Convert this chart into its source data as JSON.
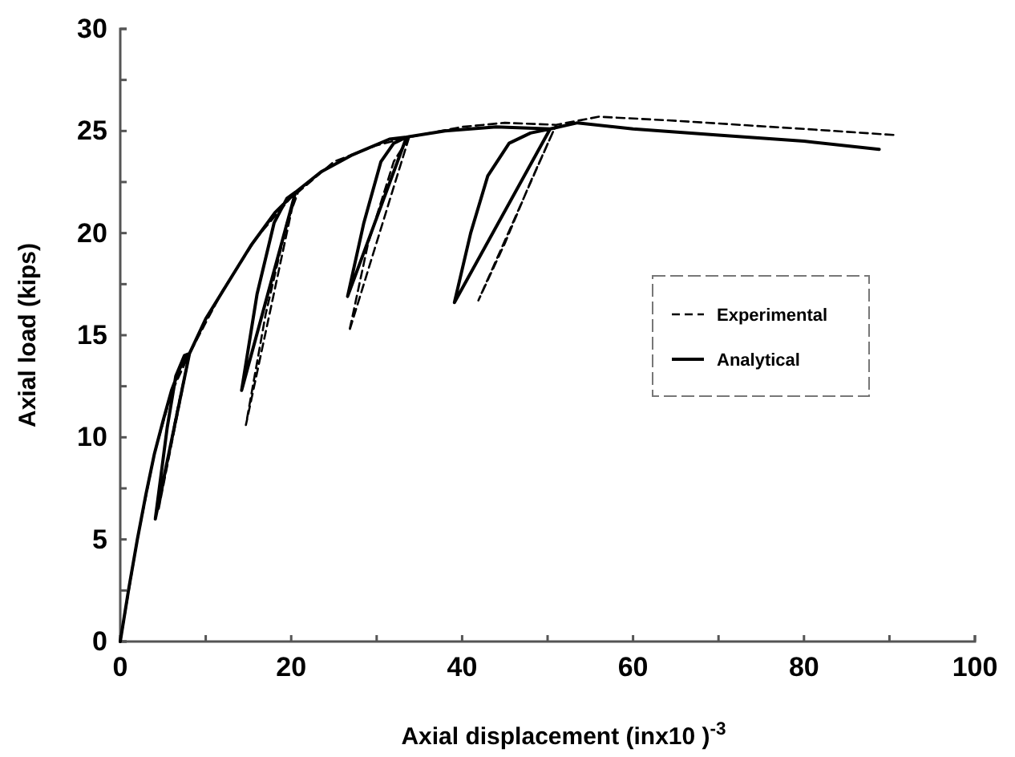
{
  "chart_data": {
    "type": "line",
    "xlabel": "Axial displacement (inx10 )$^{-3}$",
    "ylabel": "Axial load  (kips)",
    "xlim": [
      0,
      100
    ],
    "ylim": [
      0,
      30
    ],
    "xticks": [
      0,
      {
        "value": 10,
        "label": null
      },
      20,
      {
        "value": 30,
        "label": null
      },
      40,
      {
        "value": 50,
        "label": null
      },
      60,
      {
        "value": 70,
        "label": null
      },
      80,
      {
        "value": 90,
        "label": null
      },
      100
    ],
    "yticks": [
      0,
      {
        "value": 2.5,
        "label": null
      },
      5,
      {
        "value": 7.5,
        "label": null
      },
      10,
      {
        "value": 12.5,
        "label": null
      },
      15,
      {
        "value": 17.5,
        "label": null
      },
      20,
      {
        "value": 22.5,
        "label": null
      },
      25,
      {
        "value": 27.5,
        "label": null
      },
      30
    ],
    "legend": "right",
    "grid": false,
    "marker": "none",
    "series": [
      {
        "name": "Experimental",
        "color": "#000000",
        "line_style": "dashed",
        "x": [
          0,
          2,
          4,
          6,
          8.1,
          4.5,
          6.5,
          8.1,
          12,
          16,
          20.5,
          14.7,
          17,
          19.5,
          20.8,
          25,
          30,
          33.8,
          26.8,
          29,
          32,
          33.8,
          40,
          45,
          51,
          41.9,
          45,
          48,
          51,
          56,
          65,
          80,
          90.7
        ],
        "values": [
          0,
          5,
          9.2,
          12.2,
          14.1,
          6.5,
          11,
          14.1,
          17.2,
          19.8,
          22,
          10.6,
          16,
          20.5,
          22,
          23.5,
          24.3,
          24.7,
          15.2,
          19.5,
          23.5,
          24.7,
          25.2,
          25.4,
          25.3,
          16.7,
          19.5,
          22.5,
          25.3,
          25.7,
          25.5,
          25.1,
          24.8
        ]
      },
      {
        "name": "Analytical",
        "color": "#000000",
        "line_style": "solid",
        "x": [
          0,
          1,
          2,
          3,
          4,
          5,
          6,
          7,
          8.1,
          4.1,
          5.5,
          6.5,
          7.5,
          8.1,
          10,
          12.2,
          15.3,
          18.1,
          20.5,
          14.2,
          16,
          18,
          19.5,
          20.5,
          23.5,
          27,
          31.5,
          33.5,
          26.6,
          28.5,
          30.5,
          32,
          33.5,
          38,
          44,
          50.3,
          39.1,
          41,
          43,
          45.5,
          48,
          50.3,
          53.5,
          60,
          70,
          80,
          88.8
        ],
        "values": [
          0,
          2.6,
          5,
          7.2,
          9.2,
          10.8,
          12.3,
          13.4,
          14.1,
          6,
          10.5,
          13,
          14,
          14.1,
          15.8,
          17.3,
          19.4,
          21,
          22,
          12.3,
          17,
          20.5,
          21.7,
          22,
          23,
          23.8,
          24.6,
          24.7,
          16.9,
          20.5,
          23.5,
          24.4,
          24.7,
          25,
          25.2,
          25.1,
          16.6,
          20,
          22.8,
          24.4,
          24.9,
          25.1,
          25.4,
          25.1,
          24.8,
          24.5,
          24.1
        ]
      }
    ]
  }
}
